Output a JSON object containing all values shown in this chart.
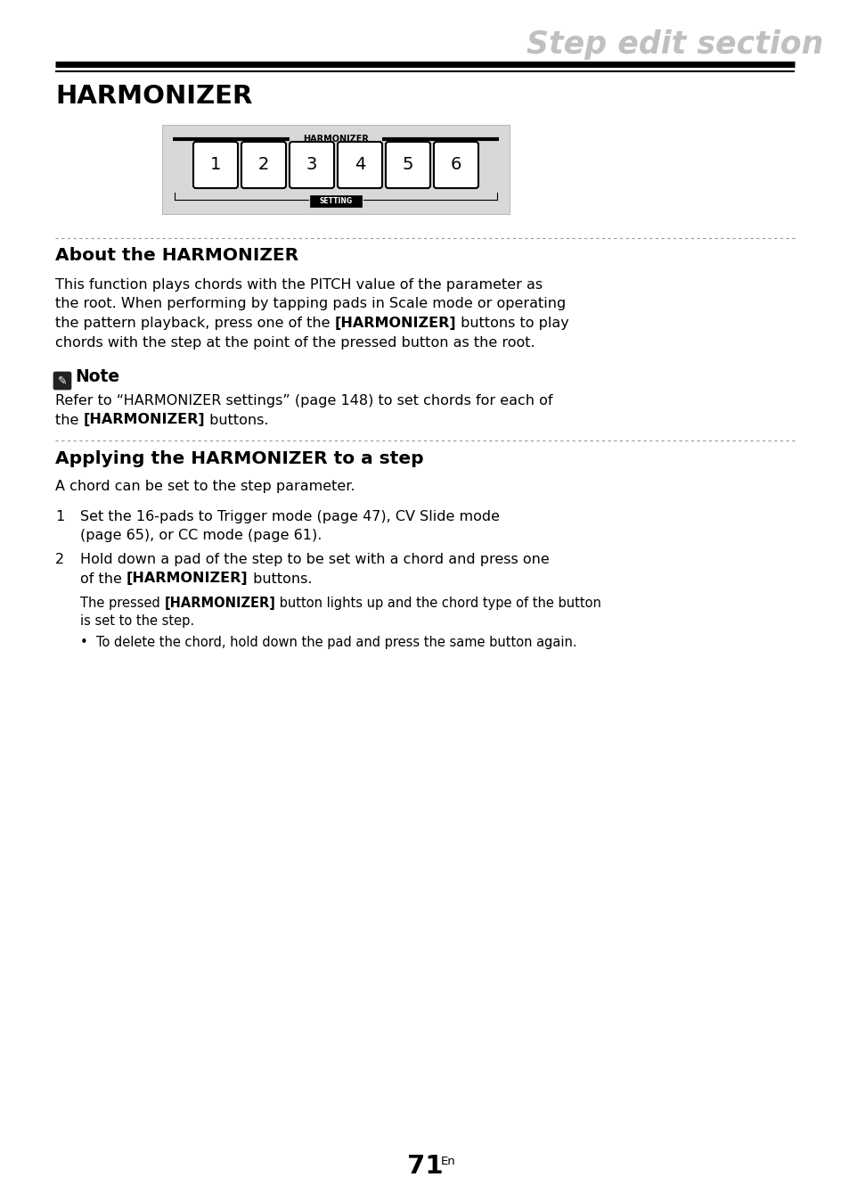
{
  "page_title": "Step edit section",
  "section_title": "HARMONIZER",
  "image_label": "HARMONIZER",
  "button_labels": [
    "1",
    "2",
    "3",
    "4",
    "5",
    "6"
  ],
  "setting_label": "SETTING",
  "section2_title": "About the HARMONIZER",
  "note_title": "Note",
  "section3_title": "Applying the HARMONIZER to a step",
  "section3_intro": "A chord can be set to the step parameter.",
  "bullet_text": "To delete the chord, hold down the pad and press the same button again.",
  "page_number": "71",
  "page_suffix": "En",
  "bg_color": "#ffffff",
  "text_color": "#000000",
  "title_color": "#c0c0c0",
  "image_bg_color": "#d8d8d8",
  "ml": 62,
  "mr": 62
}
